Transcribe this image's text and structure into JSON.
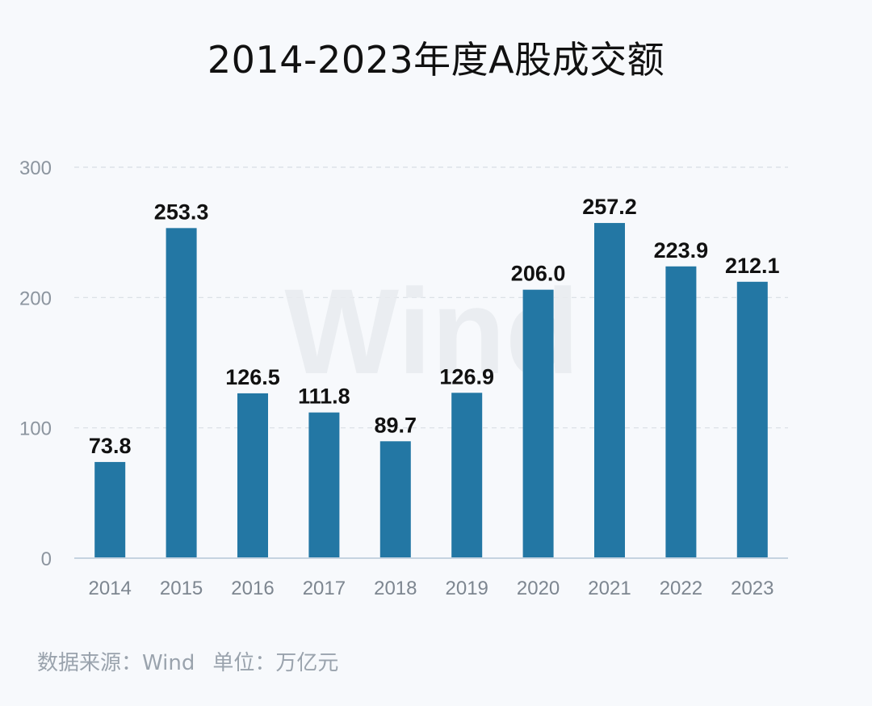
{
  "chart_data": {
    "type": "bar",
    "title": "2014-2023年度A股成交额",
    "categories": [
      "2014",
      "2015",
      "2016",
      "2017",
      "2018",
      "2019",
      "2020",
      "2021",
      "2022",
      "2023"
    ],
    "values": [
      73.8,
      253.3,
      126.5,
      111.8,
      89.7,
      126.9,
      206.0,
      257.2,
      223.9,
      212.1
    ],
    "value_labels": [
      "73.8",
      "253.3",
      "126.5",
      "111.8",
      "89.7",
      "126.9",
      "206.0",
      "257.2",
      "223.9",
      "212.1"
    ],
    "yticks": [
      "0",
      "100",
      "200",
      "300"
    ],
    "ylim": [
      0,
      300
    ],
    "xlabel": "",
    "ylabel": "",
    "grid": true,
    "bar_color": "#2377a4",
    "watermark": "Wind"
  },
  "footer": {
    "source": "数据来源：Wind",
    "unit": "单位：万亿元"
  }
}
